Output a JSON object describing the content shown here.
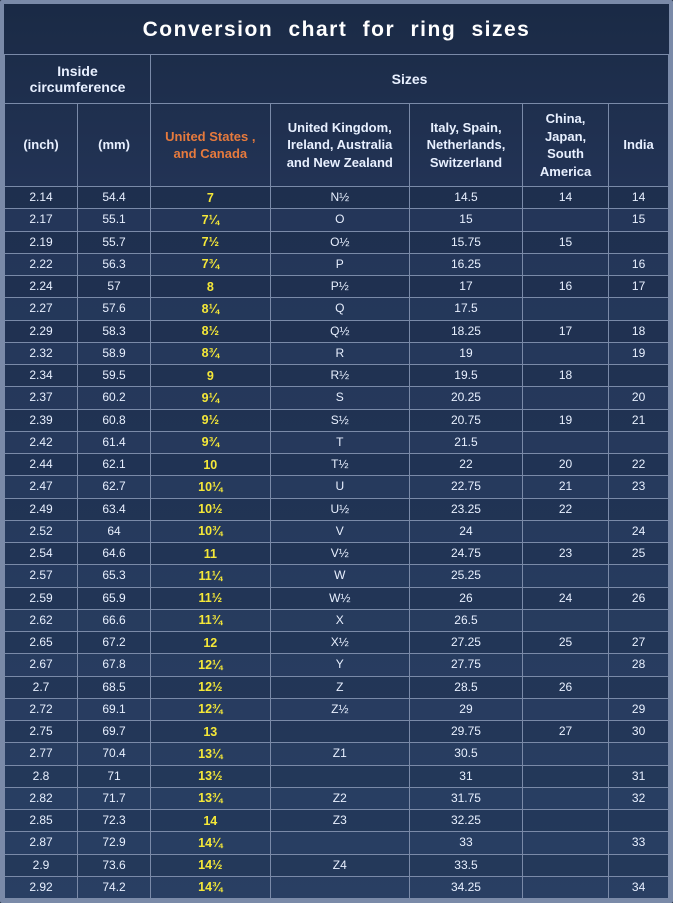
{
  "title": "Conversion  chart   for  ring  sizes",
  "group_headers": [
    "Inside circumference",
    "Sizes"
  ],
  "columns": [
    "(inch)",
    "(mm)",
    "United States , and Canada",
    "United Kingdom, Ireland, Australia and New Zealand",
    "Italy,  Spain, Netherlands, Switzerland",
    "China, Japan, South America",
    "India"
  ],
  "colors": {
    "background": "#0a1420",
    "border": "#7a8aa8",
    "title_text": "#ffffff",
    "header_text": "#e8f0ff",
    "us_header": "#e67a3d",
    "us_cell": "#f5e838",
    "cell_text": "#e8f0ff"
  },
  "column_widths_pct": [
    11,
    11,
    18,
    21,
    17,
    13,
    9
  ],
  "rows": [
    [
      "2.14",
      "54.4",
      "7",
      "N½",
      "14.5",
      "14",
      "14"
    ],
    [
      "2.17",
      "55.1",
      "7¼",
      "O",
      "15",
      "",
      "15"
    ],
    [
      "2.19",
      "55.7",
      "7½",
      "O½",
      "15.75",
      "15",
      ""
    ],
    [
      "2.22",
      "56.3",
      "7¾",
      "P",
      "16.25",
      "",
      "16"
    ],
    [
      "2.24",
      "57",
      "8",
      "P½",
      "17",
      "16",
      "17"
    ],
    [
      "2.27",
      "57.6",
      "8¼",
      "Q",
      "17.5",
      "",
      ""
    ],
    [
      "2.29",
      "58.3",
      "8½",
      "Q½",
      "18.25",
      "17",
      "18"
    ],
    [
      "2.32",
      "58.9",
      "8¾",
      "R",
      "19",
      "",
      "19"
    ],
    [
      "2.34",
      "59.5",
      "9",
      "R½",
      "19.5",
      "18",
      ""
    ],
    [
      "2.37",
      "60.2",
      "9¼",
      "S",
      "20.25",
      "",
      "20"
    ],
    [
      "2.39",
      "60.8",
      "9½",
      "S½",
      "20.75",
      "19",
      "21"
    ],
    [
      "2.42",
      "61.4",
      "9¾",
      "T",
      "21.5",
      "",
      ""
    ],
    [
      "2.44",
      "62.1",
      "10",
      "T½",
      "22",
      "20",
      "22"
    ],
    [
      "2.47",
      "62.7",
      "10¼",
      "U",
      "22.75",
      "21",
      "23"
    ],
    [
      "2.49",
      "63.4",
      "10½",
      "U½",
      "23.25",
      "22",
      ""
    ],
    [
      "2.52",
      "64",
      "10¾",
      "V",
      "24",
      "",
      "24"
    ],
    [
      "2.54",
      "64.6",
      "11",
      "V½",
      "24.75",
      "23",
      "25"
    ],
    [
      "2.57",
      "65.3",
      "11¼",
      "W",
      "25.25",
      "",
      ""
    ],
    [
      "2.59",
      "65.9",
      "11½",
      "W½",
      "26",
      "24",
      "26"
    ],
    [
      "2.62",
      "66.6",
      "11¾",
      "X",
      "26.5",
      "",
      ""
    ],
    [
      "2.65",
      "67.2",
      "12",
      "X½",
      "27.25",
      "25",
      "27"
    ],
    [
      "2.67",
      "67.8",
      "12¼",
      "Y",
      "27.75",
      "",
      "28"
    ],
    [
      "2.7",
      "68.5",
      "12½",
      "Z",
      "28.5",
      "26",
      ""
    ],
    [
      "2.72",
      "69.1",
      "12¾",
      "Z½",
      "29",
      "",
      "29"
    ],
    [
      "2.75",
      "69.7",
      "13",
      "",
      "29.75",
      "27",
      "30"
    ],
    [
      "2.77",
      "70.4",
      "13¼",
      "Z1",
      "30.5",
      "",
      ""
    ],
    [
      "2.8",
      "71",
      "13½",
      "",
      "31",
      "",
      "31"
    ],
    [
      "2.82",
      "71.7",
      "13¾",
      "Z2",
      "31.75",
      "",
      "32"
    ],
    [
      "2.85",
      "72.3",
      "14",
      "Z3",
      "32.25",
      "",
      ""
    ],
    [
      "2.87",
      "72.9",
      "14¼",
      "",
      "33",
      "",
      "33"
    ],
    [
      "2.9",
      "73.6",
      "14½",
      "Z4",
      "33.5",
      "",
      ""
    ],
    [
      "2.92",
      "74.2",
      "14¾",
      "",
      "34.25",
      "",
      "34"
    ]
  ]
}
